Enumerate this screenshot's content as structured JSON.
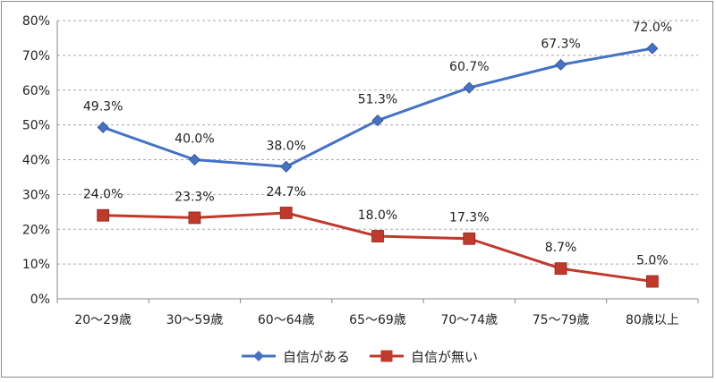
{
  "chart_data": {
    "type": "line",
    "title": "",
    "xlabel": "",
    "ylabel": "",
    "ylim": [
      0,
      80
    ],
    "y_ticks": [
      "0%",
      "10%",
      "20%",
      "30%",
      "40%",
      "50%",
      "60%",
      "70%",
      "80%"
    ],
    "grid": "dashed-horizontal",
    "legend_position": "bottom",
    "categories": [
      "20～29歳",
      "30～59歳",
      "60～64歳",
      "65～69歳",
      "70～74歳",
      "75～79歳",
      "80歳以上"
    ],
    "series": [
      {
        "name": "自信がある",
        "color": "#4472c4",
        "marker": "diamond",
        "values": [
          49.3,
          40.0,
          38.0,
          51.3,
          60.7,
          67.3,
          72.0
        ],
        "labels": [
          "49.3%",
          "40.0%",
          "38.0%",
          "51.3%",
          "60.7%",
          "67.3%",
          "72.0%"
        ]
      },
      {
        "name": "自信が無い",
        "color": "#c0392b",
        "marker": "square",
        "values": [
          24.0,
          23.3,
          24.7,
          18.0,
          17.3,
          8.7,
          5.0
        ],
        "labels": [
          "24.0%",
          "23.3%",
          "24.7%",
          "18.0%",
          "17.3%",
          "8.7%",
          "5.0%"
        ]
      }
    ]
  }
}
